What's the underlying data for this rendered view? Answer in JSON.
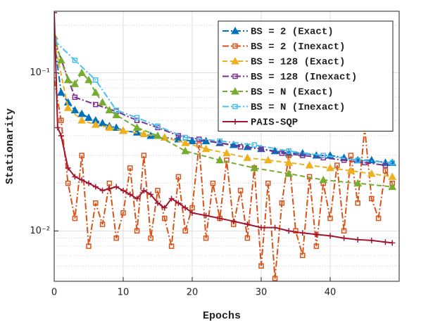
{
  "chart_data": {
    "type": "line",
    "x_label": "Epochs",
    "y_label": "Stationarity",
    "xlim": [
      0,
      50
    ],
    "xticks": [
      0,
      10,
      20,
      30,
      40
    ],
    "ylim": [
      0.0048,
      0.245
    ],
    "log_y": true,
    "yticks": [
      {
        "value": 0.01,
        "label": "10⁻²"
      },
      {
        "value": 0.1,
        "label": "10⁻¹"
      }
    ],
    "yminorticks": [
      0.005,
      0.006,
      0.007,
      0.008,
      0.009,
      0.02,
      0.03,
      0.04,
      0.05,
      0.06,
      0.07,
      0.08,
      0.09,
      0.2
    ],
    "grid": true,
    "legend": "upper right",
    "series": [
      {
        "name": "BS = 2 (Exact)",
        "color": "#0072BD",
        "dash": "9 3 2 3",
        "marker": "triangle",
        "x": [
          0,
          1,
          2,
          3,
          4,
          5,
          6,
          7,
          8,
          9,
          10,
          12,
          14,
          16,
          18,
          20,
          22,
          24,
          26,
          28,
          30,
          32,
          34,
          36,
          38,
          40,
          42,
          44,
          46,
          48,
          49
        ],
        "values": [
          0.16,
          0.075,
          0.065,
          0.058,
          0.055,
          0.052,
          0.05,
          0.048,
          0.046,
          0.045,
          0.043,
          0.042,
          0.04,
          0.039,
          0.038,
          0.037,
          0.037,
          0.036,
          0.035,
          0.034,
          0.033,
          0.032,
          0.031,
          0.031,
          0.03,
          0.03,
          0.029,
          0.028,
          0.028,
          0.027,
          0.027
        ]
      },
      {
        "name": "BS = 2 (Inexact)",
        "color": "#D95319",
        "dash": "9 3 2 3",
        "marker": "square",
        "x": [
          0,
          1,
          2,
          3,
          4,
          5,
          6,
          7,
          8,
          9,
          10,
          11,
          12,
          13,
          14,
          15,
          16,
          17,
          18,
          19,
          20,
          21,
          22,
          23,
          24,
          25,
          26,
          27,
          28,
          29,
          30,
          31,
          32,
          33,
          34,
          35,
          36,
          37,
          38,
          39,
          40,
          41,
          42,
          43,
          44,
          45,
          46,
          47,
          48,
          49
        ],
        "values": [
          0.09,
          0.05,
          0.02,
          0.012,
          0.03,
          0.008,
          0.015,
          0.011,
          0.02,
          0.009,
          0.013,
          0.025,
          0.01,
          0.03,
          0.009,
          0.018,
          0.012,
          0.008,
          0.022,
          0.01,
          0.014,
          0.035,
          0.009,
          0.02,
          0.012,
          0.028,
          0.011,
          0.018,
          0.009,
          0.025,
          0.006,
          0.02,
          0.005,
          0.015,
          0.03,
          0.01,
          0.007,
          0.022,
          0.008,
          0.02,
          0.012,
          0.026,
          0.01,
          0.03,
          0.015,
          0.045,
          0.016,
          0.012,
          0.024,
          0.02
        ]
      },
      {
        "name": "BS = 128 (Exact)",
        "color": "#EDB120",
        "dash": "7 4",
        "marker": "triangle",
        "x": [
          0,
          2,
          4,
          6,
          8,
          10,
          13,
          16,
          19,
          22,
          25,
          28,
          31,
          34,
          37,
          40,
          43,
          46,
          49
        ],
        "values": [
          0.16,
          0.06,
          0.05,
          0.047,
          0.045,
          0.043,
          0.041,
          0.039,
          0.036,
          0.033,
          0.031,
          0.029,
          0.028,
          0.027,
          0.026,
          0.025,
          0.024,
          0.023,
          0.022
        ]
      },
      {
        "name": "BS = 128 (Inexact)",
        "color": "#7E2F8E",
        "dash": "9 3 2 3",
        "marker": "square",
        "x": [
          0,
          3,
          6,
          9,
          12,
          15,
          18,
          21,
          24,
          27,
          30,
          33,
          36,
          39,
          42,
          45,
          48
        ],
        "values": [
          0.16,
          0.07,
          0.063,
          0.057,
          0.05,
          0.045,
          0.04,
          0.038,
          0.036,
          0.034,
          0.033,
          0.031,
          0.03,
          0.029,
          0.028,
          0.027,
          0.026
        ]
      },
      {
        "name": "BS = N (Exact)",
        "color": "#77AC30",
        "dash": "7 4",
        "marker": "triangle",
        "x": [
          0,
          1,
          2,
          3,
          4,
          5,
          6,
          7,
          8,
          9,
          12,
          15,
          19,
          24,
          29,
          34,
          39,
          44,
          49
        ],
        "values": [
          0.17,
          0.12,
          0.09,
          0.085,
          0.1,
          0.09,
          0.075,
          0.065,
          0.058,
          0.054,
          0.045,
          0.04,
          0.032,
          0.028,
          0.025,
          0.023,
          0.021,
          0.02,
          0.019
        ]
      },
      {
        "name": "BS = N (Inexact)",
        "color": "#4DBEEE",
        "dash": "9 3 2 3",
        "marker": "square",
        "x": [
          0,
          3,
          6,
          9,
          12,
          15,
          19,
          24,
          29,
          34,
          39,
          44,
          49
        ],
        "values": [
          0.16,
          0.12,
          0.09,
          0.058,
          0.052,
          0.046,
          0.039,
          0.037,
          0.035,
          0.032,
          0.03,
          0.028,
          0.027
        ]
      },
      {
        "name": "PAIS-SQP",
        "color": "#A2142F",
        "dash": "none",
        "marker": "plus",
        "x": [
          0,
          0.5,
          1,
          2,
          3,
          4,
          5,
          6,
          7,
          8,
          9,
          10,
          11,
          12,
          13,
          14,
          15,
          16,
          17,
          18,
          19,
          20,
          22,
          24,
          26,
          28,
          30,
          32,
          34,
          36,
          38,
          40,
          42,
          44,
          46,
          48,
          49
        ],
        "values": [
          0.24,
          0.045,
          0.04,
          0.025,
          0.022,
          0.021,
          0.02,
          0.019,
          0.018,
          0.0185,
          0.019,
          0.018,
          0.017,
          0.016,
          0.018,
          0.017,
          0.015,
          0.014,
          0.016,
          0.015,
          0.014,
          0.013,
          0.0125,
          0.012,
          0.0115,
          0.011,
          0.0105,
          0.0105,
          0.01,
          0.0097,
          0.0095,
          0.0093,
          0.009,
          0.0088,
          0.0087,
          0.0085,
          0.0084
        ]
      }
    ]
  }
}
